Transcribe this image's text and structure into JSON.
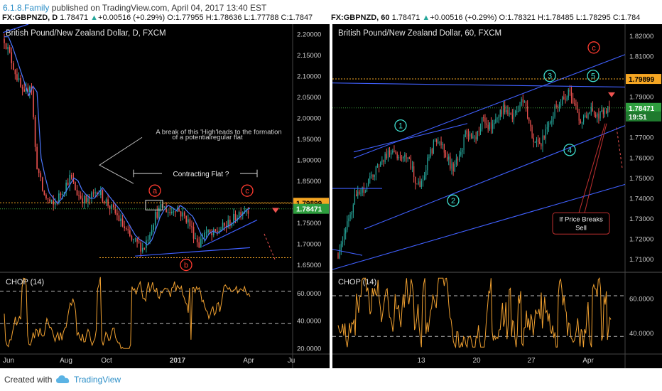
{
  "publish": {
    "author": "6.1.8.Family",
    "text": "published on TradingView.com, April 04, 2017 13:40 EST"
  },
  "left_header": {
    "symbol": "FX:GBPNZD, D",
    "last": "1.78471",
    "arrow": "▲",
    "change": "+0.00516 (+0.29%)",
    "open": "O:1.77955",
    "high": "H:1.78636",
    "low": "L:1.77788",
    "close": "C:1.7847"
  },
  "right_header": {
    "symbol": "FX:GBPNZD, 60",
    "last": "1.78471",
    "arrow": "▲",
    "change": "+0.00516 (+0.29%)",
    "open": "O:1.78321",
    "high": "H:1.78485",
    "low": "L:1.78295",
    "close": "C:1.784"
  },
  "footer": {
    "created": "Created with",
    "brand": "TradingView"
  },
  "colors": {
    "bull": "#26a69a",
    "bear": "#ef5350",
    "ema": "#4c78ff",
    "osc": "#f0a030",
    "price_tag": "#2e9e3e",
    "level_tag": "#f5a623",
    "wave_red": "#ff3b30",
    "wave_cyan": "#40e0d0",
    "trend": "#4060ff"
  },
  "chart_data": [
    {
      "type": "candlestick",
      "title": "British Pound/New Zealand Dollar, D, FXCM",
      "xlabel": "",
      "ylabel": "",
      "ylim": [
        1.635,
        2.225
      ],
      "x_tick_labels": [
        "Jun",
        "Aug",
        "Oct",
        "2017",
        "Apr",
        "Ju"
      ],
      "y_tick_labels": [
        "2.20000",
        "2.15000",
        "2.10000",
        "2.05000",
        "2.00000",
        "1.95000",
        "1.90000",
        "1.85000",
        "1.80000",
        "1.75000",
        "1.70000",
        "1.65000"
      ],
      "price_tags": [
        {
          "label": "1.79899",
          "value": 1.79899,
          "kind": "level"
        },
        {
          "label": "1.78471",
          "value": 1.78471,
          "kind": "price"
        }
      ],
      "swing_path": [
        [
          0,
          2.19
        ],
        [
          0.04,
          2.12
        ],
        [
          0.08,
          2.05
        ],
        [
          0.11,
          2.09
        ],
        [
          0.13,
          1.9
        ],
        [
          0.16,
          1.82
        ],
        [
          0.2,
          1.79
        ],
        [
          0.24,
          1.83
        ],
        [
          0.27,
          1.86
        ],
        [
          0.3,
          1.82
        ],
        [
          0.34,
          1.8
        ],
        [
          0.38,
          1.83
        ],
        [
          0.42,
          1.8
        ],
        [
          0.46,
          1.77
        ],
        [
          0.5,
          1.73
        ],
        [
          0.52,
          1.71
        ],
        [
          0.55,
          1.7
        ],
        [
          0.57,
          1.69
        ],
        [
          0.59,
          1.72
        ],
        [
          0.62,
          1.77
        ],
        [
          0.65,
          1.79
        ],
        [
          0.68,
          1.775
        ],
        [
          0.7,
          1.79
        ],
        [
          0.73,
          1.77
        ],
        [
          0.75,
          1.76
        ],
        [
          0.78,
          1.72
        ],
        [
          0.8,
          1.7
        ],
        [
          0.82,
          1.73
        ],
        [
          0.85,
          1.72
        ],
        [
          0.88,
          1.735
        ],
        [
          0.91,
          1.745
        ],
        [
          0.94,
          1.76
        ],
        [
          0.97,
          1.78
        ],
        [
          1.0,
          1.785
        ]
      ],
      "annotations": [
        {
          "text": "A break of this 'High'leads to the formation",
          "kind": "note"
        },
        {
          "text": "of a potentialregular flat",
          "kind": "note"
        },
        {
          "text": "Contracting Flat ?",
          "kind": "label"
        },
        {
          "text": "a",
          "kind": "wave"
        },
        {
          "text": "b",
          "kind": "wave"
        },
        {
          "text": "c",
          "kind": "wave"
        }
      ],
      "indicator": {
        "name": "CHOP (14)",
        "ylim": [
          16,
          75
        ],
        "y_tick_labels": [
          "60.0000",
          "40.0000",
          "20.0000"
        ],
        "levels": [
          61.8,
          38.2
        ]
      }
    },
    {
      "type": "candlestick",
      "title": "British Pound/New Zealand Dollar, 60, FXCM",
      "xlabel": "",
      "ylabel": "",
      "ylim": [
        1.704,
        1.826
      ],
      "x_tick_labels": [
        "13",
        "20",
        "27",
        "Apr"
      ],
      "y_tick_labels": [
        "1.82000",
        "1.81000",
        "1.80000",
        "1.79000",
        "1.78000",
        "1.77000",
        "1.76000",
        "1.75000",
        "1.74000",
        "1.73000",
        "1.72000",
        "1.71000"
      ],
      "price_tags": [
        {
          "label": "1.79899",
          "value": 1.79899,
          "kind": "level"
        },
        {
          "label": "1.78471",
          "value": 1.78471,
          "kind": "price"
        },
        {
          "label": "19:51",
          "value": 1.7805,
          "kind": "time"
        }
      ],
      "swing_path": [
        [
          0,
          1.713
        ],
        [
          0.03,
          1.725
        ],
        [
          0.06,
          1.74
        ],
        [
          0.1,
          1.745
        ],
        [
          0.13,
          1.752
        ],
        [
          0.17,
          1.76
        ],
        [
          0.2,
          1.765
        ],
        [
          0.23,
          1.758
        ],
        [
          0.26,
          1.762
        ],
        [
          0.28,
          1.75
        ],
        [
          0.3,
          1.745
        ],
        [
          0.33,
          1.758
        ],
        [
          0.36,
          1.77
        ],
        [
          0.39,
          1.765
        ],
        [
          0.42,
          1.755
        ],
        [
          0.45,
          1.76
        ],
        [
          0.47,
          1.772
        ],
        [
          0.5,
          1.768
        ],
        [
          0.53,
          1.778
        ],
        [
          0.56,
          1.775
        ],
        [
          0.59,
          1.782
        ],
        [
          0.62,
          1.785
        ],
        [
          0.65,
          1.78
        ],
        [
          0.68,
          1.79
        ],
        [
          0.7,
          1.78
        ],
        [
          0.72,
          1.77
        ],
        [
          0.74,
          1.765
        ],
        [
          0.77,
          1.775
        ],
        [
          0.8,
          1.784
        ],
        [
          0.83,
          1.79
        ],
        [
          0.86,
          1.792
        ],
        [
          0.88,
          1.782
        ],
        [
          0.9,
          1.778
        ],
        [
          0.93,
          1.785
        ],
        [
          0.96,
          1.781
        ],
        [
          1.0,
          1.785
        ]
      ],
      "annotations": [
        {
          "text": "1",
          "kind": "wave"
        },
        {
          "text": "2",
          "kind": "wave"
        },
        {
          "text": "3",
          "kind": "wave"
        },
        {
          "text": "4",
          "kind": "wave"
        },
        {
          "text": "5",
          "kind": "wave"
        },
        {
          "text": "c",
          "kind": "wave"
        },
        {
          "text": "If Price Breaks",
          "kind": "callout"
        },
        {
          "text": "Sell",
          "kind": "callout"
        }
      ],
      "indicator": {
        "name": "CHOP (14)",
        "ylim": [
          28,
          75
        ],
        "y_tick_labels": [
          "60.0000",
          "40.0000"
        ],
        "levels": [
          61.8,
          38.2
        ]
      }
    }
  ]
}
